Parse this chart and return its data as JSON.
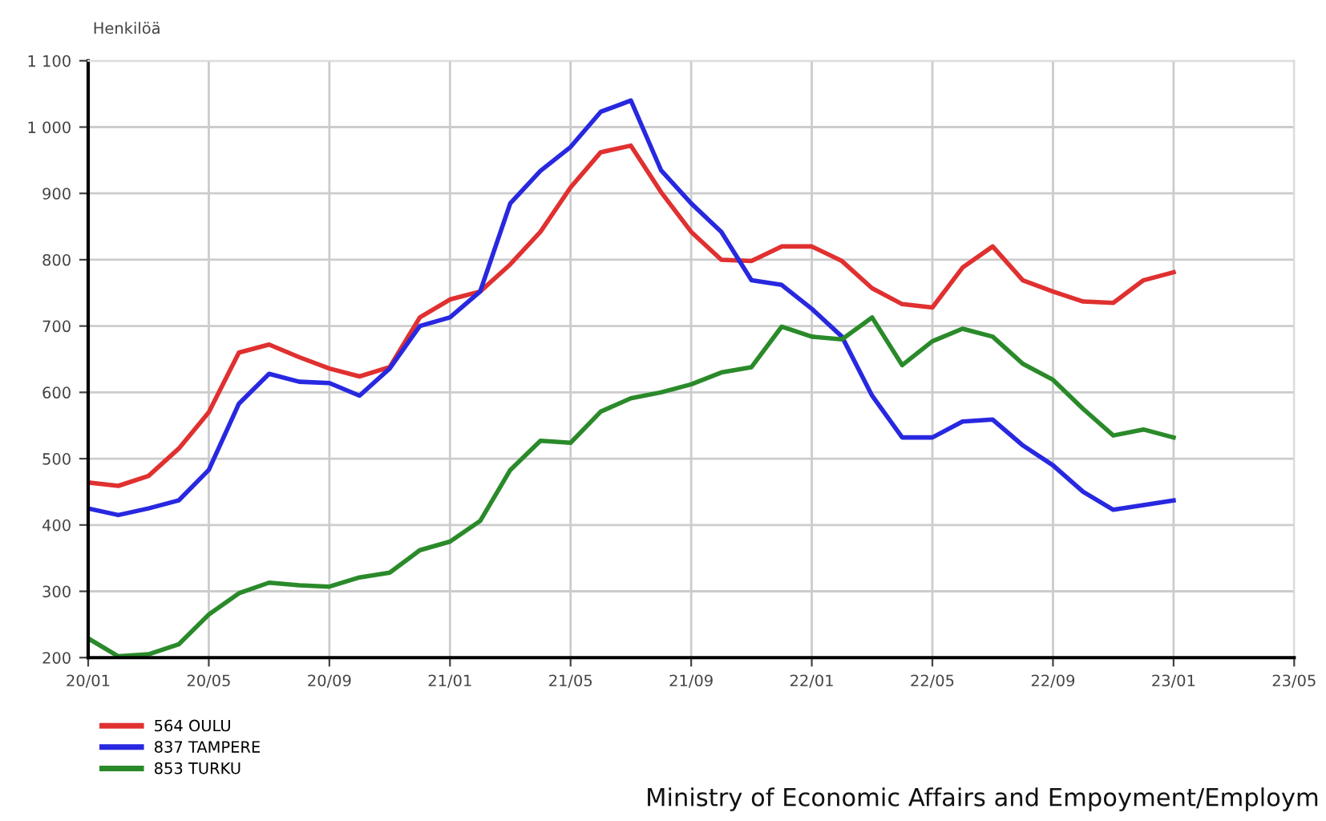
{
  "chart_data": {
    "type": "line",
    "ylabel": "Henkilöä",
    "categories": [
      "20/01",
      null,
      null,
      null,
      "20/05",
      null,
      null,
      null,
      "20/09",
      null,
      null,
      null,
      "21/01",
      null,
      null,
      null,
      "21/05",
      null,
      null,
      null,
      "21/09",
      null,
      null,
      null,
      "22/01",
      null,
      null,
      null,
      "22/05",
      null,
      null,
      null,
      "22/09",
      null,
      null,
      null,
      "23/01",
      null,
      null,
      null,
      "23/05"
    ],
    "series": [
      {
        "name": "564 OULU",
        "color": "#e03030",
        "values": [
          464,
          459,
          474,
          515,
          570,
          660,
          672,
          653,
          636,
          624,
          638,
          713,
          740,
          752,
          793,
          842,
          909,
          962,
          972,
          902,
          842,
          800,
          798,
          820,
          820,
          798,
          757,
          733,
          728,
          788,
          820,
          769,
          752,
          737,
          735,
          769,
          781,
          null,
          null,
          null,
          null
        ]
      },
      {
        "name": "837 TAMPERE",
        "color": "#2828e0",
        "values": [
          425,
          415,
          425,
          437,
          483,
          583,
          628,
          616,
          614,
          595,
          636,
          700,
          713,
          752,
          885,
          934,
          970,
          1023,
          1040,
          935,
          885,
          842,
          769,
          762,
          726,
          684,
          595,
          532,
          532,
          556,
          559,
          520,
          490,
          450,
          423,
          430,
          437,
          null,
          null,
          null,
          null
        ]
      },
      {
        "name": "853 TURKU",
        "color": "#2a8a2a",
        "values": [
          229,
          202,
          205,
          220,
          265,
          297,
          313,
          309,
          307,
          321,
          328,
          362,
          375,
          406,
          483,
          527,
          524,
          571,
          591,
          600,
          612,
          630,
          638,
          699,
          684,
          680,
          713,
          641,
          677,
          696,
          684,
          643,
          619,
          575,
          535,
          544,
          532,
          null,
          null,
          null,
          null
        ]
      }
    ],
    "ylim": [
      200,
      1100
    ],
    "yticks": [
      200,
      300,
      400,
      500,
      600,
      700,
      800,
      900,
      {
        "value": 1000,
        "label": "1 000"
      },
      {
        "value": 1100,
        "label": "1 100"
      }
    ],
    "grid": true,
    "legend": "bottom left",
    "marker": "none",
    "line_style": "solid",
    "annotations": [
      "Ministry of Economic Affairs and Empoyment/Employm"
    ]
  }
}
